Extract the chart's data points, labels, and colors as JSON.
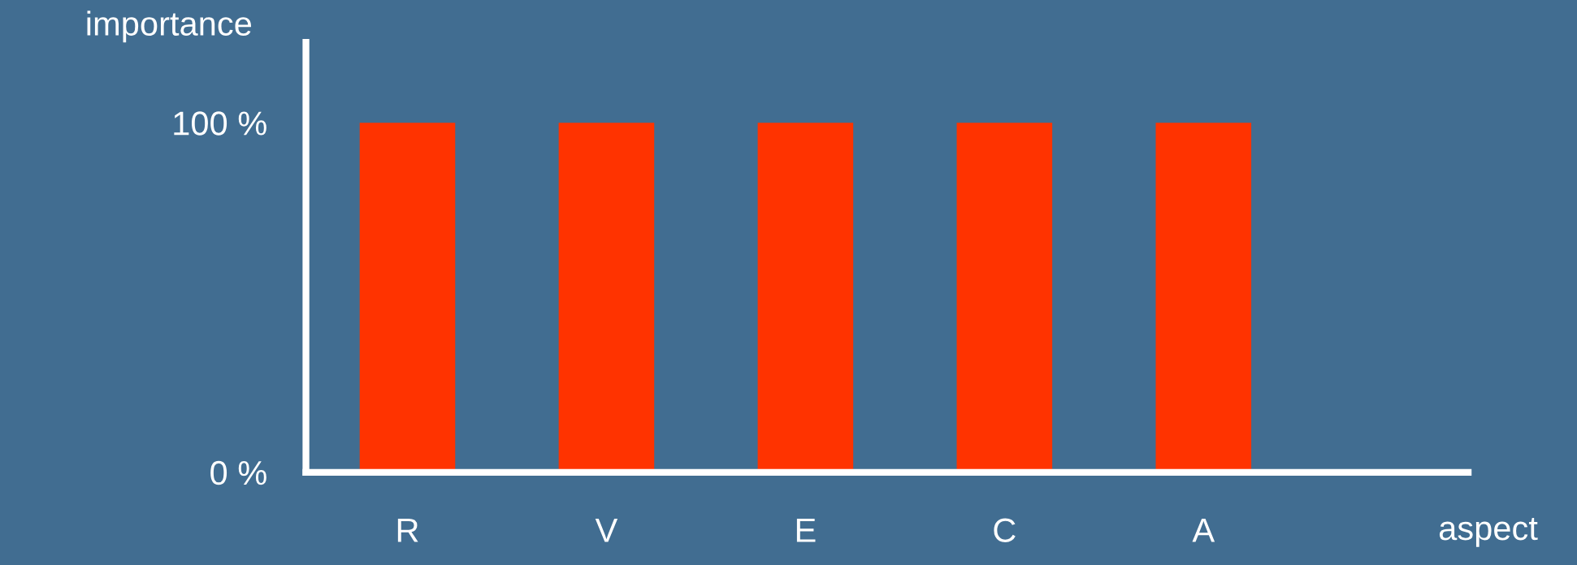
{
  "chart_data": {
    "type": "bar",
    "xlabel": "aspect",
    "ylabel": "importance",
    "categories": [
      "R",
      "V",
      "E",
      "C",
      "A"
    ],
    "values": [
      100,
      100,
      100,
      100,
      100
    ],
    "color": "#ff3300",
    "ylim": [
      0,
      123
    ],
    "yticks": [
      {
        "value": 0,
        "label": "0 %"
      },
      {
        "value": 100,
        "label": "100 %"
      }
    ],
    "grid": false
  }
}
